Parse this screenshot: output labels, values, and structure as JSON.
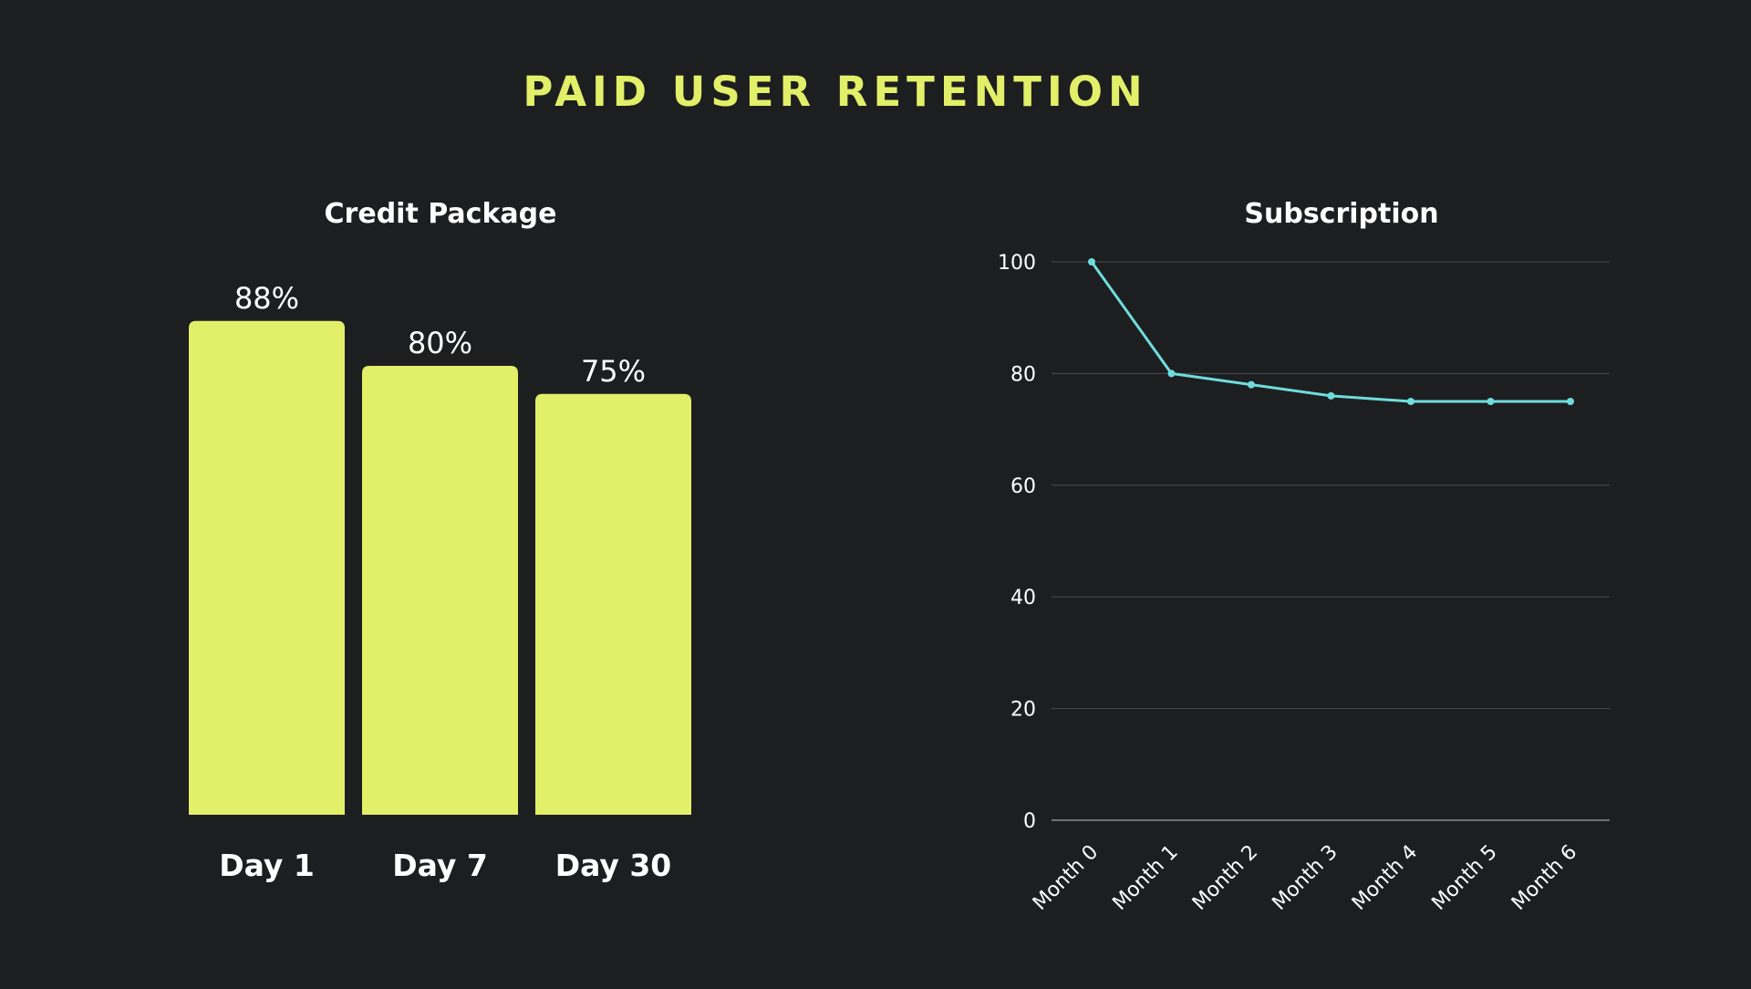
{
  "page": {
    "title": "PAID USER RETENTION",
    "colors": {
      "background": "#1d1e20",
      "accent": "#e2ef68",
      "line": "#6fdcdc",
      "text": "#ffffff",
      "grid": "#4a4b4e"
    }
  },
  "chart_data": [
    {
      "type": "bar",
      "title": "Credit Package",
      "categories": [
        "Day 1",
        "Day 7",
        "Day 30"
      ],
      "values": [
        88,
        80,
        75
      ],
      "value_labels": [
        "88%",
        "80%",
        "75%"
      ],
      "xlabel": "",
      "ylabel": "",
      "grid": false,
      "show_y_axis": false
    },
    {
      "type": "line",
      "title": "Subscription",
      "categories": [
        "Month 0",
        "Month 1",
        "Month 2",
        "Month 3",
        "Month 4",
        "Month 5",
        "Month 6"
      ],
      "values": [
        100,
        80,
        78,
        76,
        75,
        75,
        75
      ],
      "ylim": [
        0,
        100
      ],
      "yticks": [
        0,
        20,
        40,
        60,
        80,
        100
      ],
      "xlabel": "",
      "ylabel": "",
      "grid": true,
      "markers": true
    }
  ]
}
